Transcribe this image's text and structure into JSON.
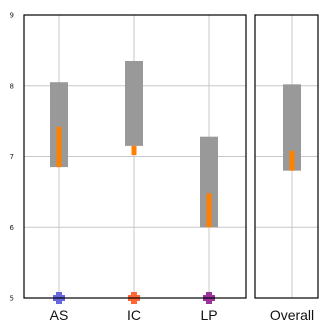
{
  "chart_data": {
    "type": "range-bar",
    "panels": [
      {
        "name": "categories",
        "categories": [
          "AS",
          "IC",
          "LP"
        ],
        "gray_range": [
          [
            6.85,
            8.05
          ],
          [
            7.15,
            8.35
          ],
          [
            6.0,
            7.28
          ]
        ],
        "orange_range": [
          [
            6.85,
            7.42
          ],
          [
            7.02,
            7.15
          ],
          [
            6.0,
            6.48
          ]
        ],
        "marker_colors": [
          "#6666dd",
          "#ff6633",
          "#993399"
        ]
      },
      {
        "name": "overall",
        "categories": [
          "Overall"
        ],
        "gray_range": [
          [
            6.8,
            8.02
          ]
        ],
        "orange_range": [
          [
            6.8,
            7.08
          ]
        ]
      }
    ],
    "ylim": [
      5,
      9
    ],
    "yticks": [
      "5",
      "6",
      "7",
      "8",
      "9"
    ],
    "grid": true,
    "colors": {
      "gray": "#999999",
      "orange": "#ff8000",
      "grid": "#c8c8c8",
      "frame": "#000000"
    }
  }
}
